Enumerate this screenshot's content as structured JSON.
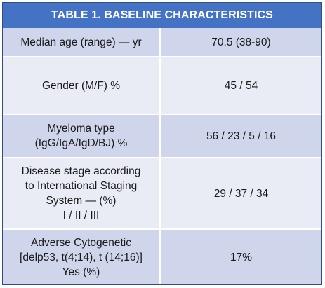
{
  "table": {
    "title": "TABLE 1. BASELINE CHARACTERISTICS",
    "rows": [
      {
        "label_lines": [
          "Median age (range) — yr"
        ],
        "value": "70,5 (38-90)"
      },
      {
        "label_lines": [
          "Gender (M/F) %"
        ],
        "value": "45 / 54"
      },
      {
        "label_lines": [
          "Myeloma type",
          "(IgG/IgA/IgD/BJ) %"
        ],
        "value": "56 / 23 / 5 / 16"
      },
      {
        "label_lines": [
          "Disease stage according",
          "to International Staging",
          "System — (%)",
          "I / II / III"
        ],
        "value": "29 / 37 / 34"
      },
      {
        "label_lines": [
          "Adverse Cytogenetic",
          "[delp53, t(4;14), t (14;16)]",
          "Yes (%)"
        ],
        "value": "17%"
      }
    ]
  }
}
